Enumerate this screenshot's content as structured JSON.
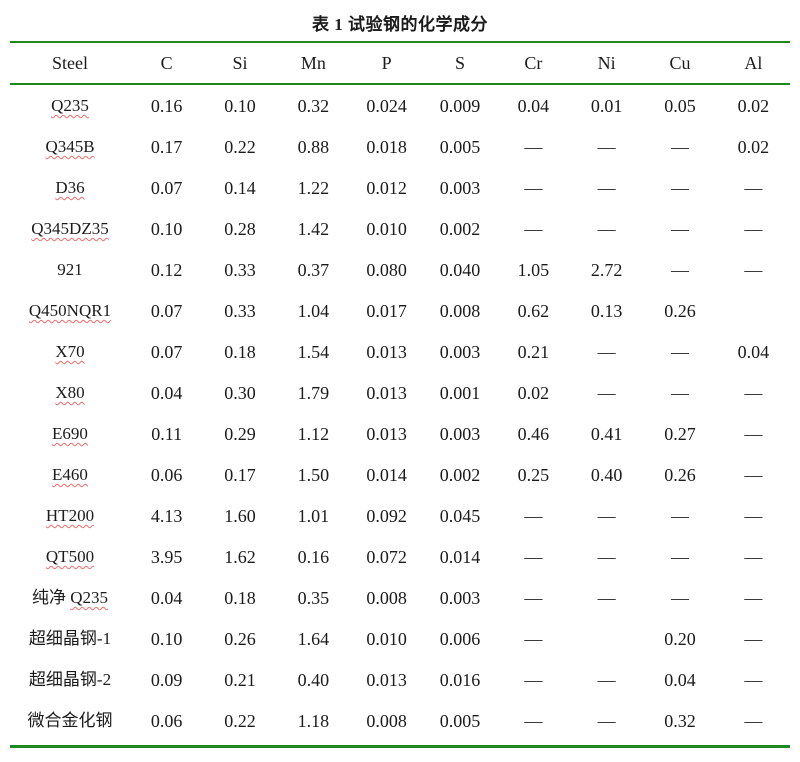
{
  "title": "表 1  试验钢的化学成分",
  "colors": {
    "rule_green": "#218721",
    "squiggle_red": "#f06a6a",
    "text": "#1b1b1b"
  },
  "table": {
    "columns": [
      "Steel",
      "C",
      "Si",
      "Mn",
      "P",
      "S",
      "Cr",
      "Ni",
      "Cu",
      "Al"
    ],
    "rows": [
      {
        "steel": {
          "prefix": "",
          "name": "Q235",
          "squiggle": true
        },
        "values": [
          "0.16",
          "0.10",
          "0.32",
          "0.024",
          "0.009",
          "0.04",
          "0.01",
          "0.05",
          "0.02"
        ]
      },
      {
        "steel": {
          "prefix": "",
          "name": "Q345B",
          "squiggle": true
        },
        "values": [
          "0.17",
          "0.22",
          "0.88",
          "0.018",
          "0.005",
          "—",
          "—",
          "—",
          "0.02"
        ]
      },
      {
        "steel": {
          "prefix": "",
          "name": "D36",
          "squiggle": true
        },
        "values": [
          "0.07",
          "0.14",
          "1.22",
          "0.012",
          "0.003",
          "—",
          "—",
          "—",
          "—"
        ]
      },
      {
        "steel": {
          "prefix": "",
          "name": "Q345DZ35",
          "squiggle": true
        },
        "values": [
          "0.10",
          "0.28",
          "1.42",
          "0.010",
          "0.002",
          "—",
          "—",
          "—",
          "—"
        ]
      },
      {
        "steel": {
          "prefix": "",
          "name": "921",
          "squiggle": false
        },
        "values": [
          "0.12",
          "0.33",
          "0.37",
          "0.080",
          "0.040",
          "1.05",
          "2.72",
          "—",
          "—"
        ]
      },
      {
        "steel": {
          "prefix": "",
          "name": "Q450NQR1",
          "squiggle": true
        },
        "values": [
          "0.07",
          "0.33",
          "1.04",
          "0.017",
          "0.008",
          "0.62",
          "0.13",
          "0.26",
          ""
        ]
      },
      {
        "steel": {
          "prefix": "",
          "name": "X70",
          "squiggle": true
        },
        "values": [
          "0.07",
          "0.18",
          "1.54",
          "0.013",
          "0.003",
          "0.21",
          "—",
          "—",
          "0.04"
        ]
      },
      {
        "steel": {
          "prefix": "",
          "name": "X80",
          "squiggle": true
        },
        "values": [
          "0.04",
          "0.30",
          "1.79",
          "0.013",
          "0.001",
          "0.02",
          "—",
          "—",
          "—"
        ]
      },
      {
        "steel": {
          "prefix": "",
          "name": "E690",
          "squiggle": true
        },
        "values": [
          "0.11",
          "0.29",
          "1.12",
          "0.013",
          "0.003",
          "0.46",
          "0.41",
          "0.27",
          "—"
        ]
      },
      {
        "steel": {
          "prefix": "",
          "name": "E460",
          "squiggle": true
        },
        "values": [
          "0.06",
          "0.17",
          "1.50",
          "0.014",
          "0.002",
          "0.25",
          "0.40",
          "0.26",
          "—"
        ]
      },
      {
        "steel": {
          "prefix": "",
          "name": "HT200",
          "squiggle": true
        },
        "values": [
          "4.13",
          "1.60",
          "1.01",
          "0.092",
          "0.045",
          "—",
          "—",
          "—",
          "—"
        ]
      },
      {
        "steel": {
          "prefix": "",
          "name": "QT500",
          "squiggle": true
        },
        "values": [
          "3.95",
          "1.62",
          "0.16",
          "0.072",
          "0.014",
          "—",
          "—",
          "—",
          "—"
        ]
      },
      {
        "steel": {
          "prefix": "纯净 ",
          "name": "Q235",
          "squiggle": true
        },
        "values": [
          "0.04",
          "0.18",
          "0.35",
          "0.008",
          "0.003",
          "—",
          "—",
          "—",
          "—"
        ]
      },
      {
        "steel": {
          "prefix": "",
          "name": "超细晶钢-1",
          "squiggle": false
        },
        "values": [
          "0.10",
          "0.26",
          "1.64",
          "0.010",
          "0.006",
          "—",
          "",
          "0.20",
          "—"
        ]
      },
      {
        "steel": {
          "prefix": "",
          "name": "超细晶钢-2",
          "squiggle": false
        },
        "values": [
          "0.09",
          "0.21",
          "0.40",
          "0.013",
          "0.016",
          "—",
          "—",
          "0.04",
          "—"
        ]
      },
      {
        "steel": {
          "prefix": "",
          "name": "微合金化钢",
          "squiggle": false
        },
        "values": [
          "0.06",
          "0.22",
          "1.18",
          "0.008",
          "0.005",
          "—",
          "—",
          "0.32",
          "—"
        ]
      }
    ]
  }
}
